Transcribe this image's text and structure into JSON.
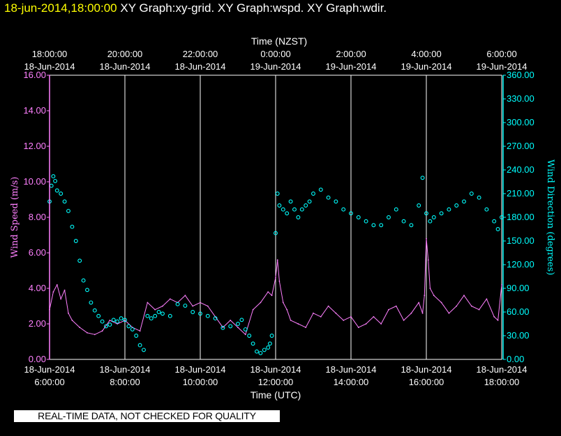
{
  "header": {
    "timestamp": "18-jun-2014,18:00:00",
    "graphs": [
      "XY Graph:xy-grid.",
      "XY Graph:wspd.",
      "XY Graph:wdir."
    ]
  },
  "banner": "REAL-TIME DATA, NOT CHECKED FOR QUALITY",
  "chart_data": {
    "type": "line",
    "xlabel_top": "Time (NZST)",
    "xlabel_bottom": "Time (UTC)",
    "ylabel_left": "Wind Speed (m/s)",
    "ylabel_right": "Wind Direction (degrees)",
    "xlim_utc_hours": [
      6,
      18
    ],
    "ylim_left": [
      0,
      16
    ],
    "ylim_right": [
      0,
      360
    ],
    "grid": "vertical",
    "colors": {
      "wspd": "#ff80ff",
      "wdir": "#00ffff",
      "grid": "#ffffff",
      "axis_left": "#ff80ff",
      "axis_right": "#00ffff"
    },
    "bottom_ticks": [
      {
        "hour": 6,
        "date": "18-Jun-2014",
        "time": "6:00:00"
      },
      {
        "hour": 8,
        "date": "18-Jun-2014",
        "time": "8:00:00"
      },
      {
        "hour": 10,
        "date": "18-Jun-2014",
        "time": "10:00:00"
      },
      {
        "hour": 12,
        "date": "18-Jun-2014",
        "time": "12:00:00"
      },
      {
        "hour": 14,
        "date": "18-Jun-2014",
        "time": "14:00:00"
      },
      {
        "hour": 16,
        "date": "18-Jun-2014",
        "time": "16:00:00"
      },
      {
        "hour": 18,
        "date": "18-Jun-2014",
        "time": "18:00:00"
      }
    ],
    "top_ticks": [
      {
        "hour": 6,
        "time": "18:00:00",
        "date": "18-Jun-2014"
      },
      {
        "hour": 8,
        "time": "20:00:00",
        "date": "18-Jun-2014"
      },
      {
        "hour": 10,
        "time": "22:00:00",
        "date": "18-Jun-2014"
      },
      {
        "hour": 12,
        "time": "0:00:00",
        "date": "19-Jun-2014"
      },
      {
        "hour": 14,
        "time": "2:00:00",
        "date": "19-Jun-2014"
      },
      {
        "hour": 16,
        "time": "4:00:00",
        "date": "19-Jun-2014"
      },
      {
        "hour": 18,
        "time": "6:00:00",
        "date": "19-Jun-2014"
      }
    ],
    "left_ticks": [
      "0.00",
      "2.00",
      "4.00",
      "6.00",
      "8.00",
      "10.00",
      "12.00",
      "14.00",
      "16.00"
    ],
    "right_ticks": [
      "0.00",
      "30.00",
      "60.00",
      "90.00",
      "120.00",
      "150.00",
      "180.00",
      "210.00",
      "240.00",
      "270.00",
      "300.00",
      "330.00",
      "360.00"
    ],
    "series": [
      {
        "key": "wspd",
        "x": [
          6.0,
          6.1,
          6.2,
          6.3,
          6.4,
          6.5,
          6.6,
          6.8,
          7.0,
          7.2,
          7.4,
          7.6,
          7.8,
          8.0,
          8.2,
          8.4,
          8.6,
          8.8,
          9.0,
          9.2,
          9.4,
          9.6,
          9.8,
          10.0,
          10.2,
          10.4,
          10.6,
          10.8,
          11.0,
          11.2,
          11.4,
          11.6,
          11.8,
          11.9,
          12.0,
          12.05,
          12.1,
          12.2,
          12.3,
          12.4,
          12.6,
          12.8,
          13.0,
          13.2,
          13.4,
          13.6,
          13.8,
          14.0,
          14.2,
          14.4,
          14.6,
          14.8,
          15.0,
          15.2,
          15.4,
          15.6,
          15.8,
          15.9,
          15.95,
          16.0,
          16.05,
          16.1,
          16.2,
          16.4,
          16.6,
          16.8,
          17.0,
          17.2,
          17.4,
          17.6,
          17.8,
          17.9,
          18.0
        ],
        "y": [
          2.8,
          3.8,
          4.2,
          3.4,
          3.9,
          2.6,
          2.2,
          1.8,
          1.5,
          1.4,
          1.6,
          2.2,
          2.0,
          2.2,
          1.8,
          1.6,
          3.2,
          2.8,
          3.0,
          3.4,
          3.2,
          3.6,
          3.0,
          3.2,
          3.0,
          2.4,
          1.8,
          2.2,
          1.8,
          1.4,
          2.8,
          3.2,
          3.8,
          3.6,
          4.6,
          5.6,
          4.4,
          3.2,
          2.8,
          2.2,
          2.0,
          1.8,
          2.6,
          2.4,
          3.0,
          2.6,
          2.2,
          2.4,
          1.8,
          2.0,
          2.4,
          2.0,
          2.8,
          3.0,
          2.2,
          2.6,
          3.2,
          2.6,
          3.6,
          6.8,
          5.6,
          4.0,
          3.6,
          3.2,
          2.6,
          3.0,
          3.6,
          3.0,
          2.8,
          3.4,
          2.4,
          2.2,
          4.2
        ]
      },
      {
        "key": "wdir",
        "x": [
          6.0,
          6.05,
          6.1,
          6.15,
          6.2,
          6.3,
          6.4,
          6.5,
          6.6,
          6.7,
          6.8,
          6.9,
          7.0,
          7.1,
          7.2,
          7.3,
          7.4,
          7.5,
          7.6,
          7.7,
          7.8,
          7.9,
          8.0,
          8.1,
          8.2,
          8.3,
          8.4,
          8.5,
          8.6,
          8.7,
          8.8,
          8.9,
          9.0,
          9.2,
          9.4,
          9.6,
          9.8,
          10.0,
          10.2,
          10.4,
          10.6,
          10.8,
          11.0,
          11.1,
          11.2,
          11.3,
          11.4,
          11.5,
          11.6,
          11.7,
          11.8,
          11.85,
          11.9,
          12.0,
          12.05,
          12.1,
          12.2,
          12.3,
          12.4,
          12.5,
          12.6,
          12.7,
          12.8,
          12.9,
          13.0,
          13.2,
          13.4,
          13.6,
          13.8,
          14.0,
          14.2,
          14.4,
          14.6,
          14.8,
          15.0,
          15.2,
          15.4,
          15.6,
          15.8,
          15.9,
          16.0,
          16.1,
          16.2,
          16.4,
          16.6,
          16.8,
          17.0,
          17.2,
          17.4,
          17.6,
          17.8,
          17.9,
          18.0
        ],
        "y": [
          200,
          220,
          232,
          226,
          214,
          210,
          200,
          188,
          168,
          150,
          125,
          100,
          88,
          72,
          62,
          55,
          48,
          42,
          44,
          50,
          48,
          52,
          50,
          42,
          38,
          30,
          18,
          12,
          55,
          52,
          55,
          60,
          58,
          55,
          70,
          68,
          60,
          58,
          55,
          52,
          40,
          42,
          45,
          50,
          38,
          30,
          20,
          10,
          8,
          12,
          15,
          20,
          30,
          160,
          210,
          195,
          190,
          185,
          200,
          190,
          180,
          190,
          195,
          200,
          210,
          215,
          205,
          200,
          190,
          185,
          180,
          175,
          170,
          170,
          180,
          190,
          175,
          170,
          195,
          230,
          185,
          175,
          180,
          185,
          190,
          195,
          200,
          210,
          205,
          190,
          175,
          165,
          180
        ]
      }
    ]
  }
}
